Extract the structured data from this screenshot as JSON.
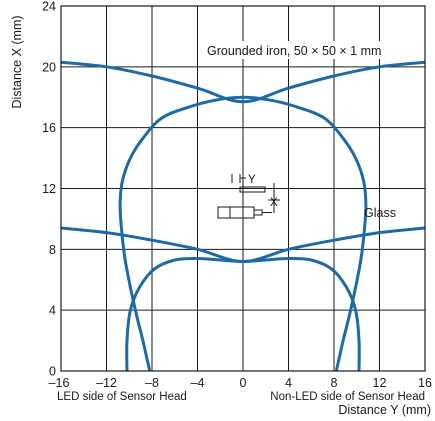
{
  "chart_data": {
    "type": "line",
    "title": "",
    "xlabel": "Distance Y (mm)",
    "ylabel": "Distance X (mm)",
    "xlim": [
      -16,
      16
    ],
    "ylim": [
      0,
      24
    ],
    "x_ticks": [
      -16,
      -12,
      -8,
      -4,
      0,
      4,
      8,
      12,
      16
    ],
    "y_ticks": [
      0,
      4,
      8,
      12,
      16,
      20,
      24
    ],
    "x_tick_labels": [
      "–16",
      "–12",
      "–8",
      "–4",
      "0",
      "4",
      "8",
      "12",
      "16"
    ],
    "y_tick_labels": [
      "0",
      "4",
      "8",
      "12",
      "16",
      "20",
      "24"
    ],
    "grid": true,
    "bottom_left_note": "LED side of Sensor Head",
    "bottom_right_note": "Non-LED side of Sensor Head",
    "sensor_diagram": {
      "y_label": "Y",
      "x_label": "X"
    },
    "series": [
      {
        "name": "Grounded iron, 50 × 50 × 1 mm",
        "color": "#1d6aa6",
        "curves": [
          {
            "x": [
              -8.2,
              -8.5,
              -8.8,
              -9.3,
              -9.9,
              -10.4,
              -10.7,
              -10.8,
              -10.6,
              -9.9,
              -8.8,
              -7.2,
              -5.0,
              -2.5,
              0,
              2.5,
              5.0,
              7.2,
              8.8,
              9.9,
              10.6,
              10.8,
              10.7,
              10.4,
              9.9,
              9.3,
              8.8,
              8.5,
              8.2
            ],
            "y": [
              0,
              1.0,
              2.0,
              3.5,
              5.5,
              7.5,
              9.5,
              11.0,
              12.5,
              14.0,
              15.3,
              16.6,
              17.3,
              17.8,
              18.0,
              17.8,
              17.3,
              16.6,
              15.3,
              14.0,
              12.5,
              11.0,
              9.5,
              7.5,
              5.5,
              3.5,
              2.0,
              1.0,
              0
            ]
          },
          {
            "x": [
              -16,
              -12,
              -8,
              -4,
              0,
              4,
              8,
              12,
              16
            ],
            "y": [
              20.3,
              20.0,
              19.4,
              18.6,
              17.7,
              18.6,
              19.4,
              20.0,
              20.3
            ]
          }
        ]
      },
      {
        "name": "Glass",
        "color": "#1d6aa6",
        "curves": [
          {
            "x": [
              -10.2,
              -10.2,
              -9.9,
              -9.1,
              -7.8,
              -6.0,
              -4.0,
              -2.0,
              0,
              2.0,
              4.0,
              6.0,
              7.8,
              9.1,
              9.9,
              10.2,
              10.2
            ],
            "y": [
              0,
              2.0,
              4.0,
              5.5,
              6.7,
              7.3,
              7.4,
              7.3,
              7.2,
              7.3,
              7.4,
              7.3,
              6.7,
              5.5,
              4.0,
              2.0,
              0
            ]
          },
          {
            "x": [
              -16,
              -12,
              -8,
              -4,
              0,
              4,
              8,
              12,
              16
            ],
            "y": [
              9.4,
              9.1,
              8.6,
              8.0,
              7.2,
              8.0,
              8.6,
              9.1,
              9.4
            ]
          }
        ]
      }
    ]
  }
}
